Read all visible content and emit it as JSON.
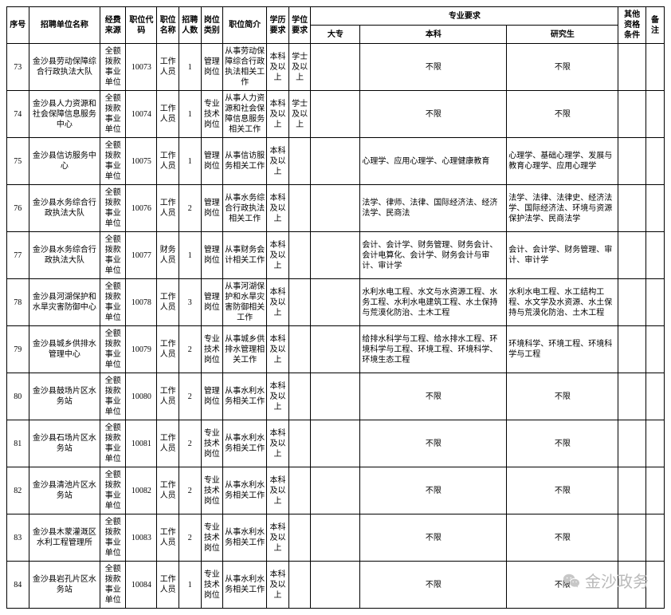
{
  "headers": {
    "seq": "序号",
    "unit": "招聘单位名称",
    "fund": "经费来源",
    "code": "职位代码",
    "pname": "职位名称",
    "count": "招聘人数",
    "ptype": "岗位类别",
    "brief": "职位简介",
    "edu": "学历要求",
    "degree": "学位要求",
    "major_group": "专业要求",
    "dazhuan": "大专",
    "benke": "本科",
    "yanjiu": "研究生",
    "other": "其他资格条件",
    "note": "备注"
  },
  "rows": [
    {
      "seq": "73",
      "unit": "金沙县劳动保障综合行政执法大队",
      "fund": "全额拨款事业单位",
      "code": "10073",
      "pname": "工作人员",
      "count": "1",
      "ptype": "管理岗位",
      "brief": "从事劳动保障综合行政执法相关工作",
      "edu": "本科及以上",
      "degree": "学士及以上",
      "dazhuan": "",
      "benke": "不限",
      "yanjiu": "不限",
      "other": "",
      "note": ""
    },
    {
      "seq": "74",
      "unit": "金沙县人力资源和社会保障信息服务中心",
      "fund": "全额拨款事业单位",
      "code": "10074",
      "pname": "工作人员",
      "count": "1",
      "ptype": "专业技术岗位",
      "brief": "从事人力资源和社会保障信息服务相关工作",
      "edu": "本科及以上",
      "degree": "学士及以上",
      "dazhuan": "",
      "benke": "不限",
      "yanjiu": "不限",
      "other": "",
      "note": ""
    },
    {
      "seq": "75",
      "unit": "金沙县信访服务中心",
      "fund": "全额拨款事业单位",
      "code": "10075",
      "pname": "工作人员",
      "count": "1",
      "ptype": "管理岗位",
      "brief": "从事信访服务相关工作",
      "edu": "本科及以上",
      "degree": "",
      "dazhuan": "",
      "benke": "心理学、应用心理学、心理健康教育",
      "yanjiu": "心理学、基础心理学、发展与教育心理学、应用心理学",
      "other": "",
      "note": ""
    },
    {
      "seq": "76",
      "unit": "金沙县水务综合行政执法大队",
      "fund": "全额拨款事业单位",
      "code": "10076",
      "pname": "工作人员",
      "count": "2",
      "ptype": "管理岗位",
      "brief": "从事水务综合行政执法相关工作",
      "edu": "本科及以上",
      "degree": "",
      "dazhuan": "",
      "benke": "法学、律师、法律、国际经济法、经济法学、民商法",
      "yanjiu": "法学、法律、法律史、经济法学、国际经济法、环境与资源保护法学、民商法学",
      "other": "",
      "note": ""
    },
    {
      "seq": "77",
      "unit": "金沙县水务综合行政执法大队",
      "fund": "全额拨款事业单位",
      "code": "10077",
      "pname": "财务人员",
      "count": "1",
      "ptype": "管理岗位",
      "brief": "从事财务会计相关工作",
      "edu": "本科及以上",
      "degree": "",
      "dazhuan": "",
      "benke": "会计、会计学、财务管理、财务会计、会计电算化、会计学、财务会计与审计、审计学",
      "yanjiu": "会计、会计学、财务管理、审计、审计学",
      "other": "",
      "note": ""
    },
    {
      "seq": "78",
      "unit": "金沙县河湖保护和水旱灾害防御中心",
      "fund": "全额拨款事业单位",
      "code": "10078",
      "pname": "工作人员",
      "count": "3",
      "ptype": "管理岗位",
      "brief": "从事河湖保护和水旱灾害防御相关工作",
      "edu": "本科及以上",
      "degree": "",
      "dazhuan": "",
      "benke": "水利水电工程、水文与水资源工程、水务工程、水利水电建筑工程、水土保持与荒漠化防治、土木工程",
      "yanjiu": "水利水电工程、水工结构工程、水文学及水资源、水土保持与荒漠化防治、土木工程",
      "other": "",
      "note": ""
    },
    {
      "seq": "79",
      "unit": "金沙县城乡供排水管理中心",
      "fund": "全额拨款事业单位",
      "code": "10079",
      "pname": "工作人员",
      "count": "2",
      "ptype": "专业技术岗位",
      "brief": "从事城乡供排水管理相关工作",
      "edu": "本科及以上",
      "degree": "",
      "dazhuan": "",
      "benke": "给排水科学与工程、给水排水工程、环境科学与工程、环境工程、环境科学、环境生态工程",
      "yanjiu": "环境科学、环境工程、环境科学与工程",
      "other": "",
      "note": ""
    },
    {
      "seq": "80",
      "unit": "金沙县鼓场片区水务站",
      "fund": "全额拨款事业单位",
      "code": "10080",
      "pname": "工作人员",
      "count": "2",
      "ptype": "管理岗位",
      "brief": "从事水利水务相关工作",
      "edu": "本科及以上",
      "degree": "",
      "dazhuan": "",
      "benke": "不限",
      "yanjiu": "不限",
      "other": "",
      "note": ""
    },
    {
      "seq": "81",
      "unit": "金沙县石场片区水务站",
      "fund": "全额拨款事业单位",
      "code": "10081",
      "pname": "工作人员",
      "count": "2",
      "ptype": "专业技术岗位",
      "brief": "从事水利水务相关工作",
      "edu": "本科及以上",
      "degree": "",
      "dazhuan": "",
      "benke": "不限",
      "yanjiu": "不限",
      "other": "",
      "note": ""
    },
    {
      "seq": "82",
      "unit": "金沙县清池片区水务站",
      "fund": "全额拨款事业单位",
      "code": "10082",
      "pname": "工作人员",
      "count": "2",
      "ptype": "专业技术岗位",
      "brief": "从事水利水务相关工作",
      "edu": "本科及以上",
      "degree": "",
      "dazhuan": "",
      "benke": "不限",
      "yanjiu": "不限",
      "other": "",
      "note": ""
    },
    {
      "seq": "83",
      "unit": "金沙县木蒙灌溉区水利工程管理所",
      "fund": "全额拨款事业单位",
      "code": "10083",
      "pname": "工作人员",
      "count": "2",
      "ptype": "专业技术岗位",
      "brief": "从事水利水务相关工作",
      "edu": "本科及以上",
      "degree": "",
      "dazhuan": "",
      "benke": "不限",
      "yanjiu": "不限",
      "other": "",
      "note": ""
    },
    {
      "seq": "84",
      "unit": "金沙县岩孔片区水务站",
      "fund": "全额拨款事业单位",
      "code": "10084",
      "pname": "工作人员",
      "count": "1",
      "ptype": "专业技术岗位",
      "brief": "从事水利水务相关工作",
      "edu": "本科及以上",
      "degree": "",
      "dazhuan": "",
      "benke": "不限",
      "yanjiu": "不限",
      "other": "",
      "note": ""
    }
  ],
  "watermark": "金沙政务"
}
